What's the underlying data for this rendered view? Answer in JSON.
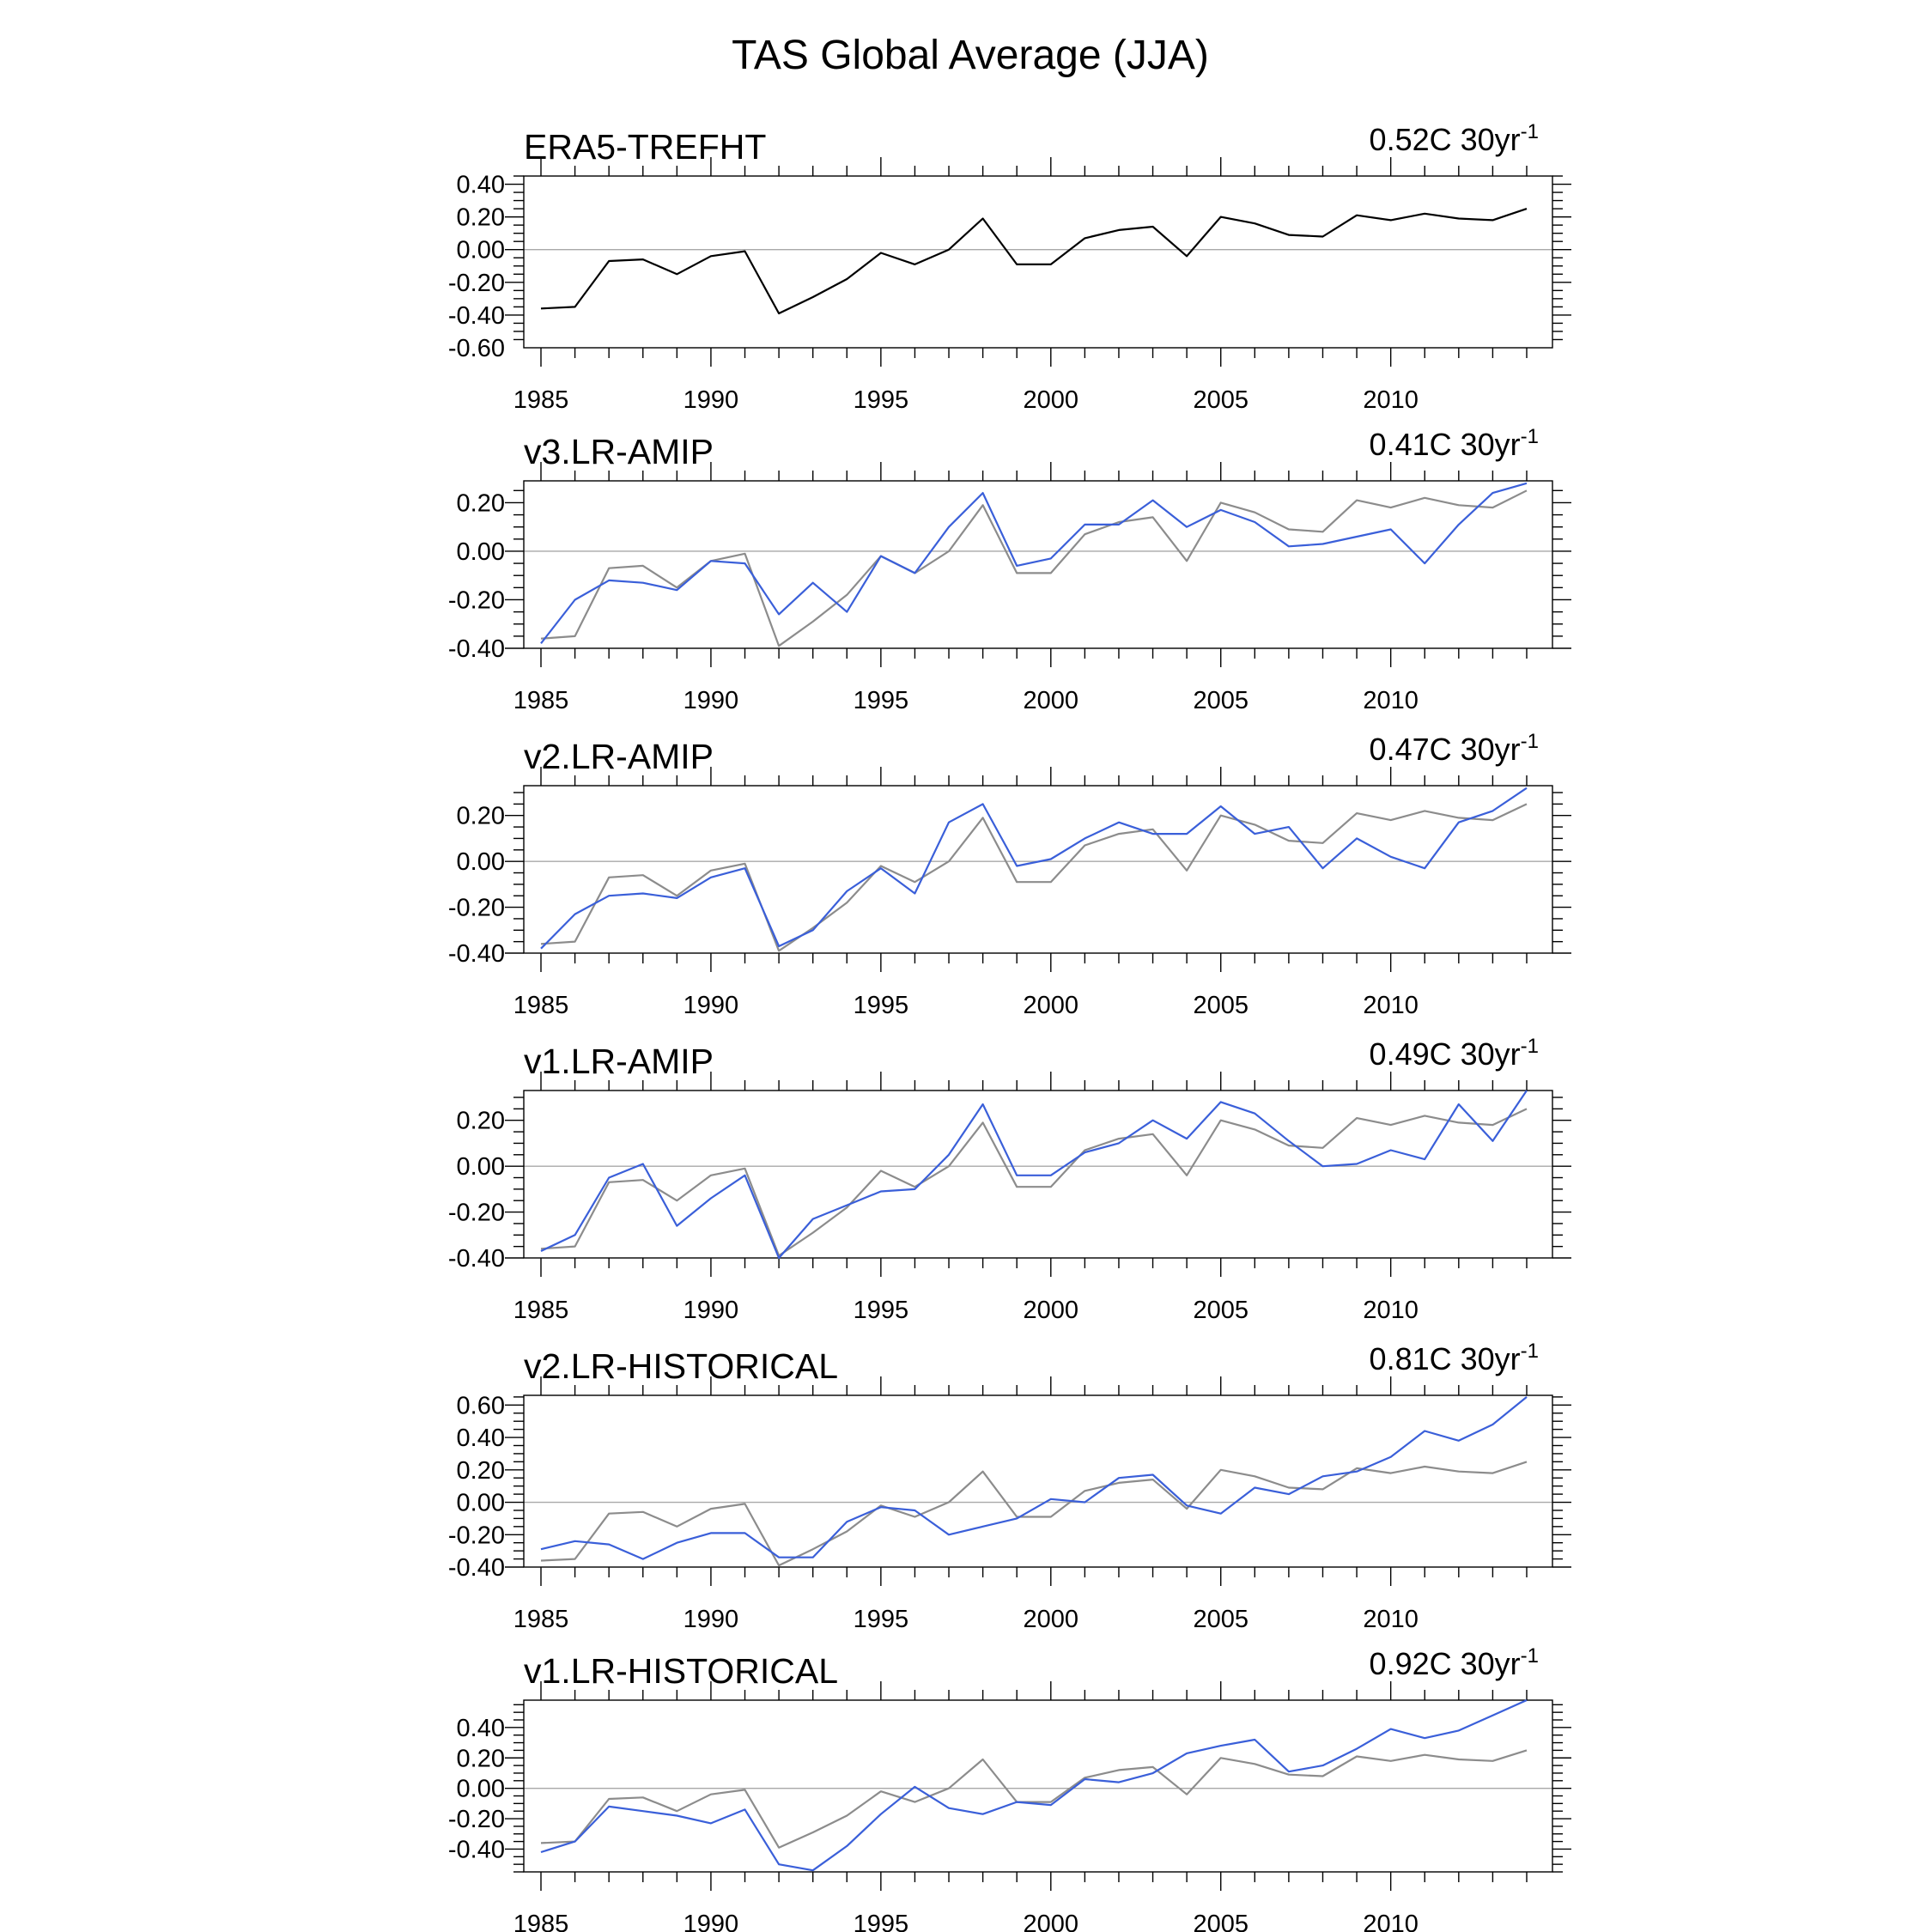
{
  "title": "TAS Global Average (JJA)",
  "colors": {
    "reference": "#000000",
    "reference_overlay": "#8c8c8c",
    "model": "#3a5fd9",
    "zero_line": "#a8a8a8"
  },
  "chart_data": [
    {
      "type": "line",
      "title": "ERA5-TREFHT",
      "trend": {
        "value": "0.52C 30yr",
        "superscript": "-1"
      },
      "x": [
        1985,
        1986,
        1987,
        1988,
        1989,
        1990,
        1991,
        1992,
        1993,
        1994,
        1995,
        1996,
        1997,
        1998,
        1999,
        2000,
        2001,
        2002,
        2003,
        2004,
        2005,
        2006,
        2007,
        2008,
        2009,
        2010,
        2011,
        2012,
        2013,
        2014
      ],
      "xticks": [
        "1985",
        "1990",
        "1995",
        "2000",
        "2005",
        "2010"
      ],
      "ylim": [
        -0.6,
        0.45
      ],
      "yticks": [
        "0.40",
        "0.20",
        "0.00",
        "-0.20",
        "-0.40",
        "-0.60"
      ],
      "ytick_values": [
        0.4,
        0.2,
        0.0,
        -0.2,
        -0.4,
        -0.6
      ],
      "series": [
        {
          "role": "reference",
          "values": [
            -0.36,
            -0.35,
            -0.07,
            -0.06,
            -0.15,
            -0.04,
            -0.01,
            -0.39,
            -0.29,
            -0.18,
            -0.02,
            -0.09,
            0.0,
            0.19,
            -0.09,
            -0.09,
            0.07,
            0.12,
            0.14,
            -0.04,
            0.2,
            0.16,
            0.09,
            0.08,
            0.21,
            0.18,
            0.22,
            0.19,
            0.18,
            0.25
          ]
        }
      ]
    },
    {
      "type": "line",
      "title": "v3.LR-AMIP",
      "trend": {
        "value": "0.41C 30yr",
        "superscript": "-1"
      },
      "x": [
        1985,
        1986,
        1987,
        1988,
        1989,
        1990,
        1991,
        1992,
        1993,
        1994,
        1995,
        1996,
        1997,
        1998,
        1999,
        2000,
        2001,
        2002,
        2003,
        2004,
        2005,
        2006,
        2007,
        2008,
        2009,
        2010,
        2011,
        2012,
        2013,
        2014
      ],
      "xticks": [
        "1985",
        "1990",
        "1995",
        "2000",
        "2005",
        "2010"
      ],
      "ylim": [
        -0.4,
        0.29
      ],
      "yticks": [
        "0.20",
        "0.00",
        "-0.20",
        "-0.40"
      ],
      "ytick_values": [
        0.2,
        0.0,
        -0.2,
        -0.4
      ],
      "series": [
        {
          "role": "reference",
          "values": [
            -0.36,
            -0.35,
            -0.07,
            -0.06,
            -0.15,
            -0.04,
            -0.01,
            -0.39,
            -0.29,
            -0.18,
            -0.02,
            -0.09,
            0.0,
            0.19,
            -0.09,
            -0.09,
            0.07,
            0.12,
            0.14,
            -0.04,
            0.2,
            0.16,
            0.09,
            0.08,
            0.21,
            0.18,
            0.22,
            0.19,
            0.18,
            0.25
          ]
        },
        {
          "role": "model",
          "values": [
            -0.38,
            -0.2,
            -0.12,
            -0.13,
            -0.16,
            -0.04,
            -0.05,
            -0.26,
            -0.13,
            -0.25,
            -0.02,
            -0.09,
            0.1,
            0.24,
            -0.06,
            -0.03,
            0.11,
            0.11,
            0.21,
            0.1,
            0.17,
            0.12,
            0.02,
            0.03,
            0.06,
            0.09,
            -0.05,
            0.11,
            0.24,
            0.28
          ]
        }
      ]
    },
    {
      "type": "line",
      "title": "v2.LR-AMIP",
      "trend": {
        "value": "0.47C 30yr",
        "superscript": "-1"
      },
      "x": [
        1985,
        1986,
        1987,
        1988,
        1989,
        1990,
        1991,
        1992,
        1993,
        1994,
        1995,
        1996,
        1997,
        1998,
        1999,
        2000,
        2001,
        2002,
        2003,
        2004,
        2005,
        2006,
        2007,
        2008,
        2009,
        2010,
        2011,
        2012,
        2013,
        2014
      ],
      "xticks": [
        "1985",
        "1990",
        "1995",
        "2000",
        "2005",
        "2010"
      ],
      "ylim": [
        -0.4,
        0.33
      ],
      "yticks": [
        "0.20",
        "0.00",
        "-0.20",
        "-0.40"
      ],
      "ytick_values": [
        0.2,
        0.0,
        -0.2,
        -0.4
      ],
      "series": [
        {
          "role": "reference",
          "values": [
            -0.36,
            -0.35,
            -0.07,
            -0.06,
            -0.15,
            -0.04,
            -0.01,
            -0.39,
            -0.29,
            -0.18,
            -0.02,
            -0.09,
            0.0,
            0.19,
            -0.09,
            -0.09,
            0.07,
            0.12,
            0.14,
            -0.04,
            0.2,
            0.16,
            0.09,
            0.08,
            0.21,
            0.18,
            0.22,
            0.19,
            0.18,
            0.25
          ]
        },
        {
          "role": "model",
          "values": [
            -0.38,
            -0.23,
            -0.15,
            -0.14,
            -0.16,
            -0.07,
            -0.03,
            -0.37,
            -0.3,
            -0.13,
            -0.03,
            -0.14,
            0.17,
            0.25,
            -0.02,
            0.01,
            0.1,
            0.17,
            0.12,
            0.12,
            0.24,
            0.12,
            0.15,
            -0.03,
            0.1,
            0.02,
            -0.03,
            0.17,
            0.22,
            0.32
          ]
        }
      ]
    },
    {
      "type": "line",
      "title": "v1.LR-AMIP",
      "trend": {
        "value": "0.49C 30yr",
        "superscript": "-1"
      },
      "x": [
        1985,
        1986,
        1987,
        1988,
        1989,
        1990,
        1991,
        1992,
        1993,
        1994,
        1995,
        1996,
        1997,
        1998,
        1999,
        2000,
        2001,
        2002,
        2003,
        2004,
        2005,
        2006,
        2007,
        2008,
        2009,
        2010,
        2011,
        2012,
        2013,
        2014
      ],
      "xticks": [
        "1985",
        "1990",
        "1995",
        "2000",
        "2005",
        "2010"
      ],
      "ylim": [
        -0.4,
        0.33
      ],
      "yticks": [
        "0.20",
        "0.00",
        "-0.20",
        "-0.40"
      ],
      "ytick_values": [
        0.2,
        0.0,
        -0.2,
        -0.4
      ],
      "series": [
        {
          "role": "reference",
          "values": [
            -0.36,
            -0.35,
            -0.07,
            -0.06,
            -0.15,
            -0.04,
            -0.01,
            -0.39,
            -0.29,
            -0.18,
            -0.02,
            -0.09,
            0.0,
            0.19,
            -0.09,
            -0.09,
            0.07,
            0.12,
            0.14,
            -0.04,
            0.2,
            0.16,
            0.09,
            0.08,
            0.21,
            0.18,
            0.22,
            0.19,
            0.18,
            0.25
          ]
        },
        {
          "role": "model",
          "values": [
            -0.37,
            -0.3,
            -0.05,
            0.01,
            -0.26,
            -0.14,
            -0.04,
            -0.4,
            -0.23,
            -0.17,
            -0.11,
            -0.1,
            0.05,
            0.27,
            -0.04,
            -0.04,
            0.06,
            0.1,
            0.2,
            0.12,
            0.28,
            0.23,
            0.11,
            0.0,
            0.01,
            0.07,
            0.03,
            0.27,
            0.11,
            0.33
          ]
        }
      ]
    },
    {
      "type": "line",
      "title": "v2.LR-HISTORICAL",
      "trend": {
        "value": "0.81C 30yr",
        "superscript": "-1"
      },
      "x": [
        1985,
        1986,
        1987,
        1988,
        1989,
        1990,
        1991,
        1992,
        1993,
        1994,
        1995,
        1996,
        1997,
        1998,
        1999,
        2000,
        2001,
        2002,
        2003,
        2004,
        2005,
        2006,
        2007,
        2008,
        2009,
        2010,
        2011,
        2012,
        2013,
        2014
      ],
      "xticks": [
        "1985",
        "1990",
        "1995",
        "2000",
        "2005",
        "2010"
      ],
      "ylim": [
        -0.4,
        0.66
      ],
      "yticks": [
        "0.60",
        "0.40",
        "0.20",
        "0.00",
        "-0.20",
        "-0.40"
      ],
      "ytick_values": [
        0.6,
        0.4,
        0.2,
        0.0,
        -0.2,
        -0.4
      ],
      "series": [
        {
          "role": "reference",
          "values": [
            -0.36,
            -0.35,
            -0.07,
            -0.06,
            -0.15,
            -0.04,
            -0.01,
            -0.39,
            -0.29,
            -0.18,
            -0.02,
            -0.09,
            0.0,
            0.19,
            -0.09,
            -0.09,
            0.07,
            0.12,
            0.14,
            -0.04,
            0.2,
            0.16,
            0.09,
            0.08,
            0.21,
            0.18,
            0.22,
            0.19,
            0.18,
            0.25
          ]
        },
        {
          "role": "model",
          "values": [
            -0.29,
            -0.24,
            -0.26,
            -0.35,
            -0.25,
            -0.19,
            -0.19,
            -0.34,
            -0.34,
            -0.12,
            -0.03,
            -0.05,
            -0.2,
            -0.15,
            -0.1,
            0.02,
            0.0,
            0.15,
            0.17,
            -0.02,
            -0.07,
            0.09,
            0.05,
            0.16,
            0.19,
            0.28,
            0.44,
            0.38,
            0.48,
            0.65
          ]
        }
      ]
    },
    {
      "type": "line",
      "title": "v1.LR-HISTORICAL",
      "trend": {
        "value": "0.92C 30yr",
        "superscript": "-1"
      },
      "x": [
        1985,
        1986,
        1987,
        1988,
        1989,
        1990,
        1991,
        1992,
        1993,
        1994,
        1995,
        1996,
        1997,
        1998,
        1999,
        2000,
        2001,
        2002,
        2003,
        2004,
        2005,
        2006,
        2007,
        2008,
        2009,
        2010,
        2011,
        2012,
        2013,
        2014
      ],
      "xticks": [
        "1985",
        "1990",
        "1995",
        "2000",
        "2005",
        "2010"
      ],
      "ylim": [
        -0.55,
        0.58
      ],
      "yticks": [
        "0.40",
        "0.20",
        "0.00",
        "-0.20",
        "-0.40"
      ],
      "ytick_values": [
        0.4,
        0.2,
        0.0,
        -0.2,
        -0.4
      ],
      "series": [
        {
          "role": "reference",
          "values": [
            -0.36,
            -0.35,
            -0.07,
            -0.06,
            -0.15,
            -0.04,
            -0.01,
            -0.39,
            -0.29,
            -0.18,
            -0.02,
            -0.09,
            0.0,
            0.19,
            -0.09,
            -0.09,
            0.07,
            0.12,
            0.14,
            -0.04,
            0.2,
            0.16,
            0.09,
            0.08,
            0.21,
            0.18,
            0.22,
            0.19,
            0.18,
            0.25
          ]
        },
        {
          "role": "model",
          "values": [
            -0.42,
            -0.35,
            -0.12,
            -0.15,
            -0.18,
            -0.23,
            -0.14,
            -0.5,
            -0.54,
            -0.38,
            -0.17,
            0.01,
            -0.13,
            -0.17,
            -0.09,
            -0.11,
            0.06,
            0.04,
            0.1,
            0.23,
            0.28,
            0.32,
            0.11,
            0.15,
            0.26,
            0.39,
            0.33,
            0.38,
            0.48,
            0.58
          ]
        }
      ]
    }
  ]
}
